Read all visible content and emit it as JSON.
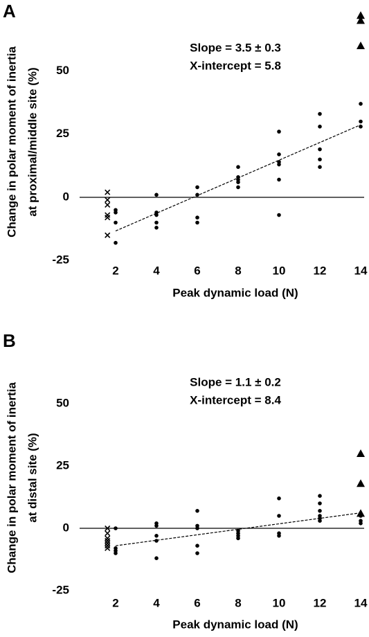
{
  "chart_data": [
    {
      "type": "scatter",
      "panel_label": "A",
      "ylabel": [
        "Change in polar moment of inertia",
        "at proximal/middle site (%)"
      ],
      "xlabel": "Peak dynamic load (N)",
      "annotations": [
        "Slope = 3.5 ± 0.3",
        "X-intercept = 5.8"
      ],
      "xlim": [
        0.5,
        14.3
      ],
      "ylim": [
        -28,
        74
      ],
      "xticks": [
        2,
        4,
        6,
        8,
        10,
        12,
        14
      ],
      "yticks": [
        -25,
        0,
        25,
        50
      ],
      "reference_line": 0,
      "grid": false,
      "series": [
        {
          "marker": "x",
          "color": "#000000",
          "x": [
            1.6,
            1.6,
            1.6,
            1.6,
            1.6,
            1.6
          ],
          "values": [
            2,
            -1,
            -3,
            -7,
            -8,
            -15
          ]
        },
        {
          "marker": "circle",
          "color": "#000000",
          "x": [
            2,
            2,
            2,
            2,
            4,
            4,
            4,
            4,
            4,
            6,
            6,
            6,
            6,
            8,
            8,
            8,
            8,
            8,
            10,
            10,
            10,
            10,
            10,
            10,
            12,
            12,
            12,
            12,
            12,
            14,
            14,
            14
          ],
          "values": [
            -5,
            -6,
            -10,
            -18,
            1,
            -6,
            -7,
            -10,
            -12,
            4,
            1,
            -8,
            -10,
            12,
            8,
            7,
            6,
            4,
            26,
            17,
            14,
            13,
            7,
            -7,
            33,
            28,
            19,
            15,
            12,
            37,
            30,
            28
          ]
        },
        {
          "marker": "triangle",
          "color": "#000000",
          "x": [
            14,
            14,
            14
          ],
          "values": [
            72,
            70,
            60
          ]
        },
        {
          "marker": "dashed-line",
          "color": "#000000",
          "x": [
            2,
            14
          ],
          "values": [
            -13.3,
            28.7
          ]
        }
      ]
    },
    {
      "type": "scatter",
      "panel_label": "B",
      "ylabel": [
        "Change in polar moment of inertia",
        "at distal site (%)"
      ],
      "xlabel": "Peak dynamic load (N)",
      "annotations": [
        "Slope = 1.1 ± 0.2",
        "X-intercept = 8.4"
      ],
      "xlim": [
        0.5,
        14.3
      ],
      "ylim": [
        -28,
        60
      ],
      "xticks": [
        2,
        4,
        6,
        8,
        10,
        12,
        14
      ],
      "yticks": [
        -25,
        0,
        25,
        50
      ],
      "reference_line": 0,
      "grid": false,
      "series": [
        {
          "marker": "x",
          "color": "#000000",
          "x": [
            1.6,
            1.6,
            1.6,
            1.6,
            1.6,
            1.6,
            1.6
          ],
          "values": [
            0,
            -2,
            -4,
            -5,
            -6,
            -7,
            -8
          ]
        },
        {
          "marker": "circle",
          "color": "#000000",
          "x": [
            2,
            2,
            2,
            2,
            4,
            4,
            4,
            4,
            4,
            6,
            6,
            6,
            6,
            6,
            8,
            8,
            8,
            8,
            10,
            10,
            10,
            10,
            12,
            12,
            12,
            12,
            12,
            12,
            14,
            14,
            14
          ],
          "values": [
            0,
            -8,
            -9,
            -10,
            2,
            1,
            -3,
            -5,
            -12,
            7,
            1,
            0,
            -7,
            -10,
            -1,
            -2,
            -3,
            -4,
            12,
            5,
            -2,
            -3,
            13,
            10,
            7,
            5,
            4,
            3,
            5,
            3,
            2
          ]
        },
        {
          "marker": "triangle",
          "color": "#000000",
          "x": [
            14,
            14,
            14
          ],
          "values": [
            30,
            18,
            6
          ]
        },
        {
          "marker": "dashed-line",
          "color": "#000000",
          "x": [
            2,
            14
          ],
          "values": [
            -7.0,
            6.2
          ]
        }
      ]
    }
  ]
}
